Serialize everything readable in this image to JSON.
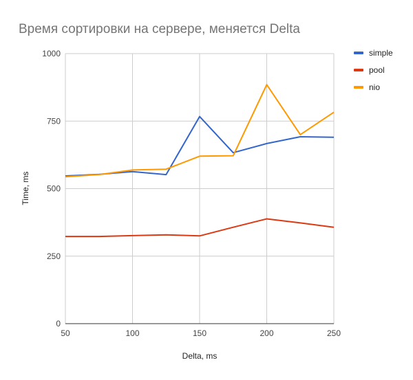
{
  "chart_data": {
    "type": "line",
    "title": "Время сортировки на сервере, меняется Delta",
    "xlabel": "Delta, ms",
    "ylabel": "Time, ms",
    "x": [
      50,
      75,
      100,
      125,
      150,
      175,
      200,
      225,
      250
    ],
    "xlim": [
      50,
      250
    ],
    "ylim": [
      0,
      1000
    ],
    "x_ticks": [
      50,
      100,
      150,
      200,
      250
    ],
    "y_ticks": [
      0,
      250,
      500,
      750,
      1000
    ],
    "grid": true,
    "legend_position": "right",
    "series": [
      {
        "name": "simple",
        "color": "#3366cc",
        "values": [
          547,
          553,
          563,
          552,
          767,
          633,
          667,
          692,
          690
        ]
      },
      {
        "name": "pool",
        "color": "#dc3912",
        "values": [
          323,
          323,
          326,
          329,
          325,
          357,
          388,
          373,
          357
        ]
      },
      {
        "name": "nio",
        "color": "#ff9900",
        "values": [
          544,
          552,
          569,
          572,
          620,
          622,
          885,
          700,
          783
        ]
      }
    ]
  }
}
